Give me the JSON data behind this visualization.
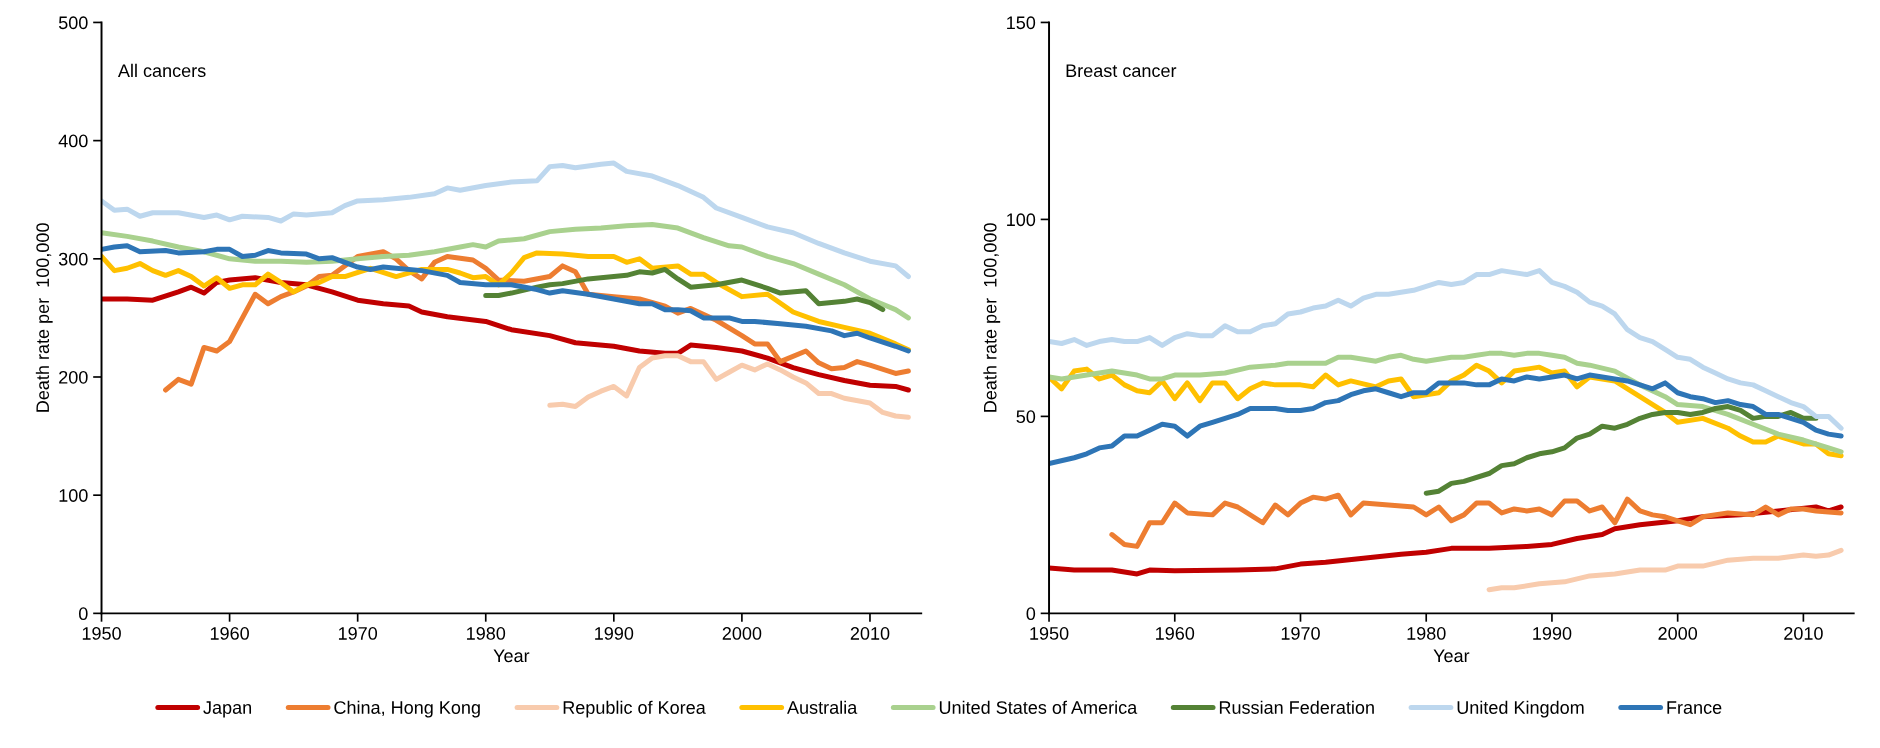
{
  "chart_data": [
    {
      "type": "line",
      "annotations": [
        "All cancers"
      ],
      "xlabel": "Year",
      "ylabel": "Death rate per  100,000",
      "xlim": [
        1950,
        2014
      ],
      "xticks": [
        1950,
        1960,
        1970,
        1980,
        1990,
        2000,
        2010
      ],
      "ylim": [
        0,
        500
      ],
      "yticks": [
        0,
        100,
        200,
        300,
        400,
        500
      ],
      "grid": false,
      "legend": "bottom",
      "marker": "none",
      "line_style": "solid",
      "series": [
        {
          "name": "Japan",
          "color": "#c00000",
          "x": [
            1950,
            1952,
            1954,
            1956,
            1957,
            1958,
            1959,
            1960,
            1962,
            1964,
            1966,
            1968,
            1970,
            1972,
            1974,
            1975,
            1977,
            1980,
            1982,
            1985,
            1987,
            1990,
            1992,
            1994,
            1995,
            1996,
            1998,
            2000,
            2002,
            2004,
            2006,
            2008,
            2010,
            2012,
            2013
          ],
          "values": [
            266,
            266,
            265,
            272,
            276,
            271,
            280,
            282,
            284,
            280,
            278,
            272,
            265,
            262,
            260,
            255,
            251,
            247,
            240,
            235,
            229,
            226,
            222,
            220,
            220,
            227,
            225,
            222,
            216,
            208,
            202,
            197,
            193,
            192,
            189
          ]
        },
        {
          "name": "China, Hong Kong",
          "color": "#ed7d31",
          "x": [
            1955,
            1956,
            1957,
            1958,
            1959,
            1960,
            1961,
            1962,
            1963,
            1964,
            1965,
            1966,
            1967,
            1968,
            1970,
            1972,
            1973,
            1974,
            1975,
            1976,
            1977,
            1979,
            1980,
            1981,
            1983,
            1985,
            1986,
            1987,
            1988,
            1990,
            1992,
            1994,
            1995,
            1996,
            1998,
            2000,
            2001,
            2002,
            2003,
            2005,
            2006,
            2007,
            2008,
            2009,
            2010,
            2012,
            2013
          ],
          "values": [
            189,
            198,
            194,
            225,
            222,
            230,
            250,
            270,
            262,
            268,
            272,
            277,
            285,
            286,
            302,
            306,
            300,
            290,
            283,
            297,
            302,
            299,
            292,
            282,
            281,
            285,
            294,
            289,
            270,
            268,
            266,
            260,
            254,
            258,
            248,
            235,
            228,
            228,
            213,
            222,
            212,
            207,
            208,
            213,
            210,
            203,
            205
          ]
        },
        {
          "name": "Republic of Korea",
          "color": "#f8cbad",
          "x": [
            1985,
            1986,
            1987,
            1988,
            1989,
            1990,
            1991,
            1992,
            1993,
            1994,
            1995,
            1996,
            1997,
            1998,
            1999,
            2000,
            2001,
            2002,
            2003,
            2004,
            2005,
            2006,
            2007,
            2008,
            2010,
            2011,
            2012,
            2013
          ],
          "values": [
            176,
            177,
            175,
            183,
            188,
            192,
            184,
            208,
            216,
            218,
            218,
            213,
            213,
            198,
            204,
            210,
            206,
            211,
            206,
            200,
            195,
            186,
            186,
            182,
            178,
            170,
            167,
            166
          ]
        },
        {
          "name": "Australia",
          "color": "#ffc000",
          "x": [
            1950,
            1951,
            1952,
            1953,
            1954,
            1955,
            1956,
            1957,
            1958,
            1959,
            1960,
            1961,
            1962,
            1963,
            1964,
            1965,
            1966,
            1967,
            1968,
            1969,
            1971,
            1973,
            1975,
            1977,
            1978,
            1979,
            1980,
            1981,
            1982,
            1983,
            1984,
            1986,
            1988,
            1990,
            1991,
            1992,
            1993,
            1995,
            1996,
            1997,
            1998,
            2000,
            2002,
            2004,
            2006,
            2008,
            2010,
            2012,
            2013
          ],
          "values": [
            302,
            290,
            292,
            296,
            290,
            286,
            290,
            285,
            277,
            284,
            275,
            278,
            278,
            287,
            280,
            272,
            278,
            280,
            285,
            285,
            292,
            285,
            291,
            291,
            288,
            284,
            285,
            278,
            288,
            301,
            305,
            304,
            302,
            302,
            297,
            300,
            292,
            294,
            287,
            287,
            280,
            268,
            270,
            255,
            247,
            242,
            237,
            228,
            223
          ]
        },
        {
          "name": "United States of America",
          "color": "#a9d18e",
          "x": [
            1950,
            1952,
            1954,
            1956,
            1958,
            1960,
            1962,
            1964,
            1966,
            1968,
            1970,
            1972,
            1974,
            1976,
            1978,
            1979,
            1980,
            1981,
            1983,
            1985,
            1987,
            1989,
            1991,
            1993,
            1995,
            1997,
            1999,
            2000,
            2002,
            2004,
            2006,
            2008,
            2010,
            2012,
            2013
          ],
          "values": [
            322,
            319,
            315,
            310,
            306,
            300,
            298,
            298,
            297,
            298,
            300,
            302,
            303,
            306,
            310,
            312,
            310,
            315,
            317,
            323,
            325,
            326,
            328,
            329,
            326,
            318,
            311,
            310,
            302,
            296,
            287,
            278,
            266,
            257,
            250
          ]
        },
        {
          "name": "Russian Federation",
          "color": "#548235",
          "x": [
            1980,
            1981,
            1982,
            1984,
            1985,
            1986,
            1988,
            1990,
            1991,
            1992,
            1993,
            1994,
            1995,
            1996,
            1998,
            2000,
            2002,
            2003,
            2005,
            2006,
            2008,
            2009,
            2010,
            2011
          ],
          "values": [
            269,
            269,
            271,
            276,
            278,
            279,
            283,
            285,
            286,
            289,
            288,
            291,
            283,
            276,
            278,
            282,
            275,
            271,
            273,
            262,
            264,
            266,
            263,
            257
          ]
        },
        {
          "name": "United Kingdom",
          "color": "#bdd7ee",
          "x": [
            1950,
            1951,
            1952,
            1953,
            1954,
            1956,
            1958,
            1959,
            1960,
            1961,
            1963,
            1964,
            1965,
            1966,
            1968,
            1969,
            1970,
            1972,
            1974,
            1976,
            1977,
            1978,
            1980,
            1982,
            1984,
            1985,
            1986,
            1987,
            1989,
            1990,
            1991,
            1993,
            1995,
            1997,
            1998,
            2000,
            2002,
            2004,
            2006,
            2008,
            2010,
            2012,
            2013
          ],
          "values": [
            349,
            341,
            342,
            336,
            339,
            339,
            335,
            337,
            333,
            336,
            335,
            332,
            338,
            337,
            339,
            345,
            349,
            350,
            352,
            355,
            360,
            358,
            362,
            365,
            366,
            378,
            379,
            377,
            380,
            381,
            374,
            370,
            362,
            352,
            343,
            335,
            327,
            322,
            313,
            305,
            298,
            294,
            285
          ]
        },
        {
          "name": "France",
          "color": "#2e75b6",
          "x": [
            1950,
            1951,
            1952,
            1953,
            1955,
            1956,
            1958,
            1959,
            1960,
            1961,
            1962,
            1963,
            1964,
            1966,
            1967,
            1968,
            1970,
            1971,
            1972,
            1973,
            1975,
            1977,
            1978,
            1980,
            1982,
            1984,
            1985,
            1986,
            1988,
            1990,
            1992,
            1993,
            1994,
            1995,
            1996,
            1997,
            1999,
            2000,
            2001,
            2003,
            2005,
            2007,
            2008,
            2009,
            2010,
            2012,
            2013
          ],
          "values": [
            308,
            310,
            311,
            306,
            307,
            305,
            306,
            308,
            308,
            302,
            303,
            307,
            305,
            304,
            300,
            301,
            293,
            291,
            293,
            292,
            290,
            286,
            280,
            278,
            278,
            274,
            271,
            273,
            270,
            266,
            262,
            262,
            257,
            257,
            256,
            250,
            250,
            247,
            247,
            245,
            243,
            239,
            235,
            237,
            233,
            226,
            222
          ]
        }
      ]
    },
    {
      "type": "line",
      "annotations": [
        "Breast cancer"
      ],
      "xlabel": "Year",
      "ylabel": "Death rate per  100,000",
      "xlim": [
        1950,
        2014
      ],
      "xticks": [
        1950,
        1960,
        1970,
        1980,
        1990,
        2000,
        2010
      ],
      "ylim": [
        0,
        150
      ],
      "yticks": [
        0,
        50,
        100,
        150
      ],
      "grid": false,
      "legend": "bottom",
      "marker": "none",
      "line_style": "solid",
      "series": [
        {
          "name": "Japan",
          "color": "#c00000",
          "x": [
            1950,
            1952,
            1955,
            1957,
            1958,
            1960,
            1965,
            1968,
            1970,
            1972,
            1975,
            1978,
            1980,
            1982,
            1985,
            1988,
            1990,
            1992,
            1994,
            1995,
            1997,
            2000,
            2002,
            2005,
            2008,
            2011,
            2012,
            2013
          ],
          "values": [
            11.5,
            11,
            11,
            10,
            11,
            10.8,
            11,
            11.3,
            12.5,
            13,
            14,
            15,
            15.5,
            16.5,
            16.5,
            17,
            17.5,
            19,
            20,
            21.5,
            22.5,
            23.5,
            24.5,
            25,
            26,
            27,
            26,
            27
          ]
        },
        {
          "name": "China, Hong Kong",
          "color": "#ed7d31",
          "x": [
            1955,
            1956,
            1957,
            1958,
            1959,
            1960,
            1961,
            1963,
            1964,
            1965,
            1967,
            1968,
            1969,
            1970,
            1971,
            1972,
            1973,
            1974,
            1975,
            1977,
            1979,
            1980,
            1981,
            1982,
            1983,
            1984,
            1985,
            1986,
            1987,
            1988,
            1989,
            1990,
            1991,
            1992,
            1993,
            1994,
            1995,
            1996,
            1997,
            1998,
            1999,
            2000,
            2001,
            2002,
            2004,
            2006,
            2007,
            2008,
            2009,
            2010,
            2011,
            2013
          ],
          "values": [
            20,
            17.5,
            17,
            23,
            23,
            28,
            25.5,
            25,
            28,
            27,
            23,
            27.5,
            25,
            28,
            29.5,
            29,
            30,
            25,
            28,
            27.5,
            27,
            25,
            27,
            23.5,
            25,
            28,
            28,
            25.5,
            26.5,
            26,
            26.5,
            25,
            28.5,
            28.5,
            26,
            27,
            23,
            29,
            26,
            25,
            24.5,
            23.5,
            22.5,
            24.5,
            25.5,
            25,
            27,
            25,
            26.5,
            26.5,
            26,
            25.5
          ]
        },
        {
          "name": "Republic of Korea",
          "color": "#f8cbad",
          "x": [
            1985,
            1986,
            1987,
            1989,
            1991,
            1993,
            1995,
            1997,
            1999,
            2000,
            2002,
            2004,
            2006,
            2008,
            2010,
            2011,
            2012,
            2013
          ],
          "values": [
            6,
            6.5,
            6.5,
            7.5,
            8,
            9.5,
            10,
            11,
            11,
            12,
            12,
            13.5,
            14,
            14,
            14.8,
            14.5,
            14.8,
            16
          ]
        },
        {
          "name": "Australia",
          "color": "#ffc000",
          "x": [
            1950,
            1951,
            1952,
            1953,
            1954,
            1955,
            1956,
            1957,
            1958,
            1959,
            1960,
            1961,
            1962,
            1963,
            1964,
            1965,
            1966,
            1967,
            1968,
            1970,
            1971,
            1972,
            1973,
            1974,
            1976,
            1977,
            1978,
            1979,
            1980,
            1981,
            1982,
            1983,
            1984,
            1985,
            1986,
            1987,
            1988,
            1989,
            1990,
            1991,
            1992,
            1993,
            1995,
            1997,
            1999,
            2000,
            2002,
            2004,
            2005,
            2006,
            2007,
            2008,
            2010,
            2011,
            2012,
            2013
          ],
          "values": [
            60,
            57,
            61.5,
            62,
            59.5,
            60.5,
            58,
            56.5,
            56,
            59,
            54.5,
            58.5,
            54,
            58.5,
            58.5,
            54.5,
            57,
            58.5,
            58,
            58,
            57.5,
            60.5,
            58,
            59,
            57.5,
            59,
            59.5,
            55,
            55.5,
            56,
            59,
            60.5,
            63,
            61.5,
            58.5,
            61.5,
            62,
            62.5,
            61,
            61.5,
            57.5,
            60,
            59,
            55,
            51,
            48.5,
            49.5,
            47,
            45,
            43.5,
            43.5,
            45,
            43,
            43,
            40.5,
            40
          ]
        },
        {
          "name": "United States of America",
          "color": "#a9d18e",
          "x": [
            1950,
            1951,
            1953,
            1955,
            1956,
            1957,
            1958,
            1959,
            1960,
            1962,
            1964,
            1966,
            1968,
            1969,
            1971,
            1972,
            1973,
            1974,
            1975,
            1976,
            1977,
            1978,
            1979,
            1980,
            1981,
            1982,
            1983,
            1984,
            1985,
            1986,
            1987,
            1988,
            1989,
            1990,
            1991,
            1992,
            1993,
            1995,
            1997,
            1999,
            2000,
            2002,
            2004,
            2006,
            2008,
            2010,
            2012,
            2013
          ],
          "values": [
            60,
            59.5,
            60.5,
            61.5,
            61,
            60.5,
            59.5,
            59.5,
            60.5,
            60.5,
            61,
            62.5,
            63,
            63.5,
            63.5,
            63.5,
            65,
            65,
            64.5,
            64,
            65,
            65.5,
            64.5,
            64,
            64.5,
            65,
            65,
            65.5,
            66,
            66,
            65.5,
            66,
            66,
            65.5,
            65,
            63.5,
            63,
            61.5,
            58,
            55,
            53,
            52.5,
            50.5,
            48,
            45.5,
            44,
            42,
            41
          ]
        },
        {
          "name": "Russian Federation",
          "color": "#548235",
          "x": [
            1980,
            1981,
            1982,
            1983,
            1985,
            1986,
            1987,
            1988,
            1989,
            1990,
            1991,
            1992,
            1993,
            1994,
            1995,
            1996,
            1997,
            1998,
            1999,
            2000,
            2001,
            2002,
            2003,
            2004,
            2005,
            2006,
            2007,
            2008,
            2009,
            2010,
            2011
          ],
          "values": [
            30.5,
            31,
            33,
            33.5,
            35.5,
            37.5,
            38,
            39.5,
            40.5,
            41,
            42,
            44.5,
            45.5,
            47.5,
            47,
            48,
            49.5,
            50.5,
            51,
            51,
            50.5,
            51,
            52,
            52.5,
            51.5,
            49.5,
            50,
            50,
            51,
            49.5,
            49.5
          ]
        },
        {
          "name": "United Kingdom",
          "color": "#bdd7ee",
          "x": [
            1950,
            1951,
            1952,
            1953,
            1954,
            1955,
            1956,
            1957,
            1958,
            1959,
            1960,
            1961,
            1962,
            1963,
            1964,
            1965,
            1966,
            1967,
            1968,
            1969,
            1970,
            1971,
            1972,
            1973,
            1974,
            1975,
            1976,
            1977,
            1978,
            1979,
            1980,
            1981,
            1982,
            1983,
            1984,
            1985,
            1986,
            1987,
            1988,
            1989,
            1990,
            1991,
            1992,
            1993,
            1994,
            1995,
            1996,
            1997,
            1998,
            1999,
            2000,
            2001,
            2002,
            2003,
            2004,
            2005,
            2006,
            2007,
            2008,
            2009,
            2010,
            2011,
            2012,
            2013
          ],
          "values": [
            69,
            68.5,
            69.5,
            68,
            69,
            69.5,
            69,
            69,
            70,
            68,
            70,
            71,
            70.5,
            70.5,
            73,
            71.5,
            71.5,
            73,
            73.5,
            76,
            76.5,
            77.5,
            78,
            79.5,
            78,
            80,
            81,
            81,
            81.5,
            82,
            83,
            84,
            83.5,
            84,
            86,
            86,
            87,
            86.5,
            86,
            87,
            84,
            83,
            81.5,
            79,
            78,
            76,
            72,
            70,
            69,
            67,
            65,
            64.5,
            62.5,
            61,
            59.5,
            58.5,
            58,
            56.5,
            55,
            53.5,
            52.5,
            50,
            50,
            47
          ]
        },
        {
          "name": "France",
          "color": "#2e75b6",
          "x": [
            1950,
            1952,
            1953,
            1954,
            1955,
            1956,
            1957,
            1958,
            1959,
            1960,
            1961,
            1962,
            1963,
            1964,
            1965,
            1966,
            1968,
            1969,
            1970,
            1971,
            1972,
            1973,
            1974,
            1975,
            1976,
            1977,
            1978,
            1979,
            1980,
            1981,
            1983,
            1984,
            1985,
            1986,
            1987,
            1988,
            1989,
            1990,
            1991,
            1992,
            1993,
            1995,
            1996,
            1997,
            1998,
            1999,
            2000,
            2001,
            2002,
            2003,
            2004,
            2005,
            2006,
            2007,
            2008,
            2009,
            2010,
            2011,
            2012,
            2013
          ],
          "values": [
            38,
            39.5,
            40.5,
            42,
            42.5,
            45,
            45,
            46.5,
            48,
            47.5,
            45,
            47.5,
            48.5,
            49.5,
            50.5,
            52,
            52,
            51.5,
            51.5,
            52,
            53.5,
            54,
            55.5,
            56.5,
            57,
            56,
            55,
            56,
            56,
            58.5,
            58.5,
            58,
            58,
            59.5,
            59,
            60,
            59.5,
            60,
            60.5,
            59.5,
            60.5,
            59.5,
            59,
            58,
            57,
            58.5,
            56,
            55,
            54.5,
            53.5,
            54,
            53,
            52.5,
            50.5,
            50.5,
            49.5,
            48.5,
            46.5,
            45.5,
            45
          ]
        }
      ]
    }
  ]
}
